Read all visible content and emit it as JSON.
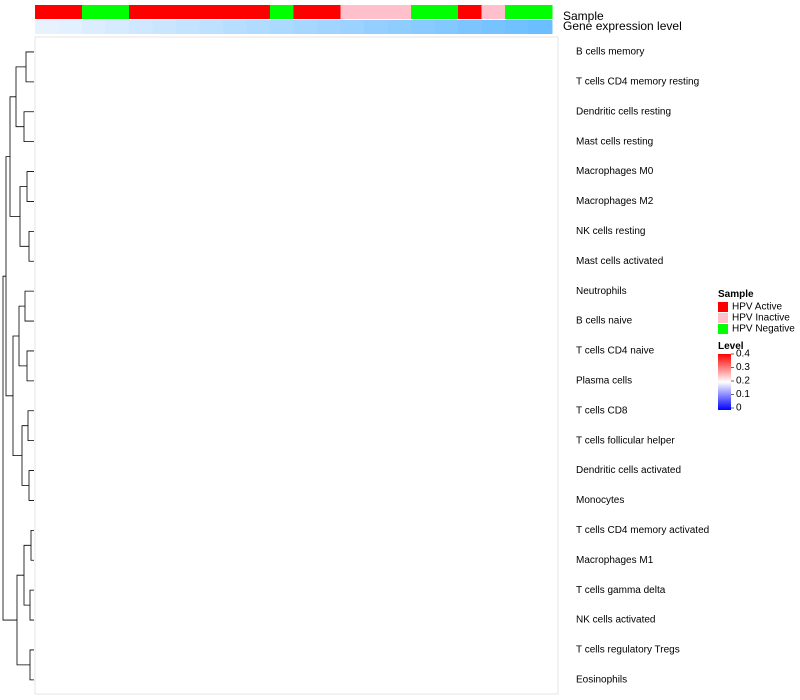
{
  "chart_data": {
    "type": "heatmap",
    "title": "",
    "annotation_tracks": [
      "Sample",
      "Gene expression level"
    ],
    "row_labels": [
      "B cells memory",
      "T cells CD4 memory resting",
      "Dendritic cells resting",
      "Mast cells resting",
      "Macrophages M0",
      "Macrophages M2",
      "NK cells resting",
      "Mast cells activated",
      "Neutrophils",
      "B cells naive",
      "T cells CD4 naive",
      "Plasma cells",
      "T cells CD8",
      "T cells follicular helper",
      "Dendritic cells activated",
      "Monocytes",
      "T cells CD4 memory activated",
      "Macrophages M1",
      "T cells gamma delta",
      "NK cells activated",
      "T cells regulatory  Tregs",
      "Eosinophils"
    ],
    "column_groups": [
      "HPV Active",
      "HPV Active",
      "HPV Negative",
      "HPV Negative",
      "HPV Active",
      "HPV Active",
      "HPV Active",
      "HPV Active",
      "HPV Active",
      "HPV Active",
      "HPV Negative",
      "HPV Active",
      "HPV Active",
      "HPV Inactive",
      "HPV Inactive",
      "HPV Inactive",
      "HPV Negative",
      "HPV Negative",
      "HPV Active",
      "HPV Inactive",
      "HPV Negative",
      "HPV Negative"
    ],
    "sample_legend": {
      "title": "Sample",
      "entries": [
        {
          "label": "HPV Active",
          "color": "#ff0000"
        },
        {
          "label": "HPV Inactive",
          "color": "#ffc0cb"
        },
        {
          "label": "HPV Negative",
          "color": "#00ff00"
        }
      ]
    },
    "level_legend": {
      "title": "Level",
      "min": 0,
      "max": 0.4,
      "ticks": [
        "0.4",
        "0.3",
        "0.2",
        "0.1",
        "0"
      ],
      "colors": [
        "#0000ff",
        "#ffffff",
        "#ff0000"
      ]
    },
    "legend_position": "right"
  }
}
